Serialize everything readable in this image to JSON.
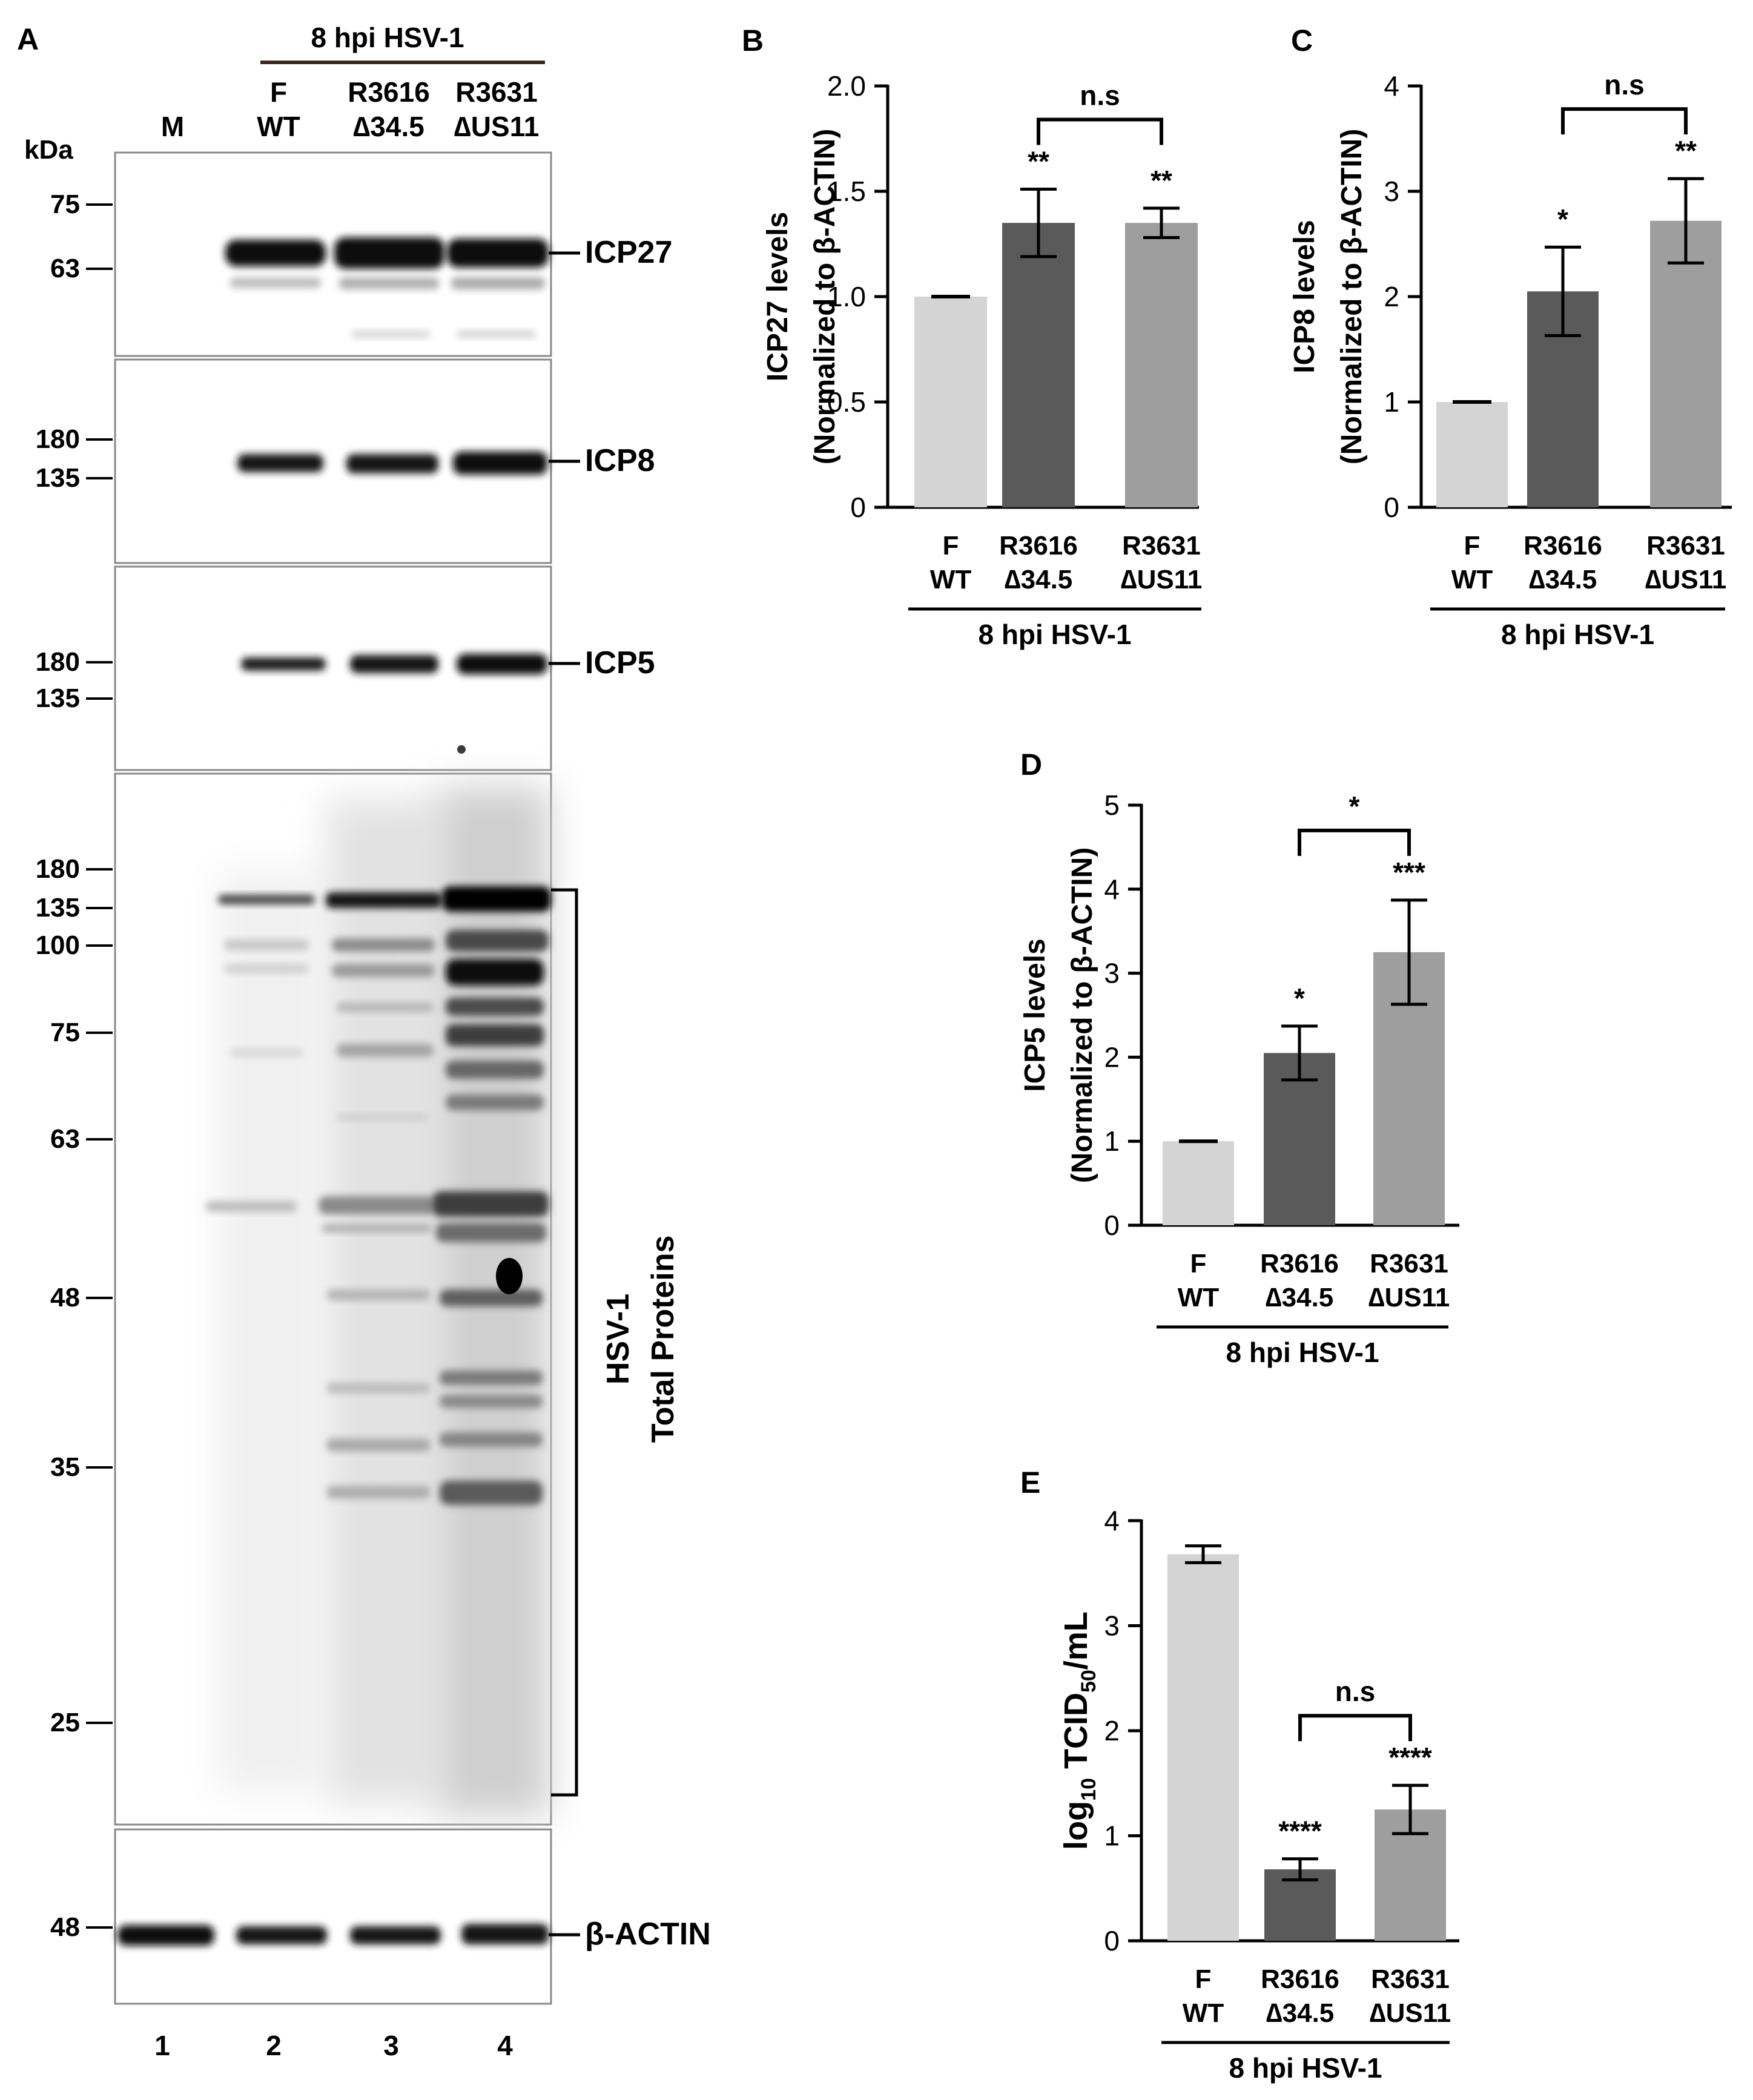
{
  "panel_a": {
    "letter": "A",
    "header": "8 hpi HSV-1",
    "kda_label": "kDa",
    "lane_labels": [
      {
        "line1": "M",
        "line2": ""
      },
      {
        "line1": "F",
        "line2": "WT"
      },
      {
        "line1": "R3616",
        "line2": "∆34.5"
      },
      {
        "line1": "R3631",
        "line2": "∆US11"
      }
    ],
    "lane_numbers": [
      "1",
      "2",
      "3",
      "4"
    ],
    "blots": [
      {
        "label": "ICP27",
        "markers": [
          "75",
          "63"
        ]
      },
      {
        "label": "ICP8",
        "markers": [
          "180",
          "135"
        ]
      },
      {
        "label": "ICP5",
        "markers": [
          "180",
          "135"
        ]
      },
      {
        "label_line1": "HSV-1",
        "label_line2": "Total Proteins",
        "markers": [
          "180",
          "135",
          "100",
          "75",
          "63",
          "48",
          "35",
          "25"
        ]
      },
      {
        "label": "β-ACTIN",
        "markers": [
          "48"
        ]
      }
    ]
  },
  "chart_data": [
    {
      "panel": "B",
      "type": "bar",
      "ylabel_line1": "ICP27 levels",
      "ylabel_line2": "(Normalized to β-ACTIN)",
      "ylim": [
        0,
        2.0
      ],
      "yticks": [
        "0",
        "0.5",
        "1.0",
        "1.5",
        "2.0"
      ],
      "categories": [
        {
          "line1": "F",
          "line2": "WT"
        },
        {
          "line1": "R3616",
          "line2": "∆34.5"
        },
        {
          "line1": "R3631",
          "line2": "∆US11"
        }
      ],
      "values": [
        1.0,
        1.35,
        1.35
      ],
      "errors": [
        0.0,
        0.16,
        0.07
      ],
      "colors": [
        "#d4d4d4",
        "#5a5a5a",
        "#9e9e9e"
      ],
      "stars": [
        "",
        "**",
        "**"
      ],
      "bracket_label": "n.s",
      "group_label": "8 hpi HSV-1"
    },
    {
      "panel": "C",
      "type": "bar",
      "ylabel_line1": "ICP8 levels",
      "ylabel_line2": "(Normalized to β-ACTIN)",
      "ylim": [
        0,
        4
      ],
      "yticks": [
        "0",
        "1",
        "2",
        "3",
        "4"
      ],
      "categories": [
        {
          "line1": "F",
          "line2": "WT"
        },
        {
          "line1": "R3616",
          "line2": "∆34.5"
        },
        {
          "line1": "R3631",
          "line2": "∆US11"
        }
      ],
      "values": [
        1.0,
        2.05,
        2.72
      ],
      "errors": [
        0.0,
        0.42,
        0.4
      ],
      "colors": [
        "#d4d4d4",
        "#5a5a5a",
        "#9e9e9e"
      ],
      "stars": [
        "",
        "*",
        "**"
      ],
      "bracket_label": "n.s",
      "group_label": "8 hpi HSV-1"
    },
    {
      "panel": "D",
      "type": "bar",
      "ylabel_line1": "ICP5 levels",
      "ylabel_line2": "(Normalized to β-ACTIN)",
      "ylim": [
        0,
        5
      ],
      "yticks": [
        "0",
        "1",
        "2",
        "3",
        "4",
        "5"
      ],
      "categories": [
        {
          "line1": "F",
          "line2": "WT"
        },
        {
          "line1": "R3616",
          "line2": "∆34.5"
        },
        {
          "line1": "R3631",
          "line2": "∆US11"
        }
      ],
      "values": [
        1.0,
        2.05,
        3.25
      ],
      "errors": [
        0.0,
        0.32,
        0.62
      ],
      "colors": [
        "#d4d4d4",
        "#5a5a5a",
        "#9e9e9e"
      ],
      "stars": [
        "",
        "*",
        "***"
      ],
      "bracket_label": "*",
      "group_label": "8 hpi HSV-1"
    },
    {
      "panel": "E",
      "type": "bar",
      "ylabel_pre": "log",
      "ylabel_sub1": "10",
      "ylabel_mid": " TCID",
      "ylabel_sub2": "50",
      "ylabel_post": "/mL",
      "ylim": [
        0,
        4
      ],
      "yticks": [
        "0",
        "1",
        "2",
        "3",
        "4"
      ],
      "categories": [
        {
          "line1": "F",
          "line2": "WT"
        },
        {
          "line1": "R3616",
          "line2": "∆34.5"
        },
        {
          "line1": "R3631",
          "line2": "∆US11"
        }
      ],
      "values": [
        3.68,
        0.68,
        1.25
      ],
      "errors": [
        0.08,
        0.1,
        0.23
      ],
      "colors": [
        "#d4d4d4",
        "#5a5a5a",
        "#9e9e9e"
      ],
      "stars": [
        "",
        "****",
        "****"
      ],
      "bracket_label": "n.s",
      "group_label": "8 hpi HSV-1"
    }
  ]
}
